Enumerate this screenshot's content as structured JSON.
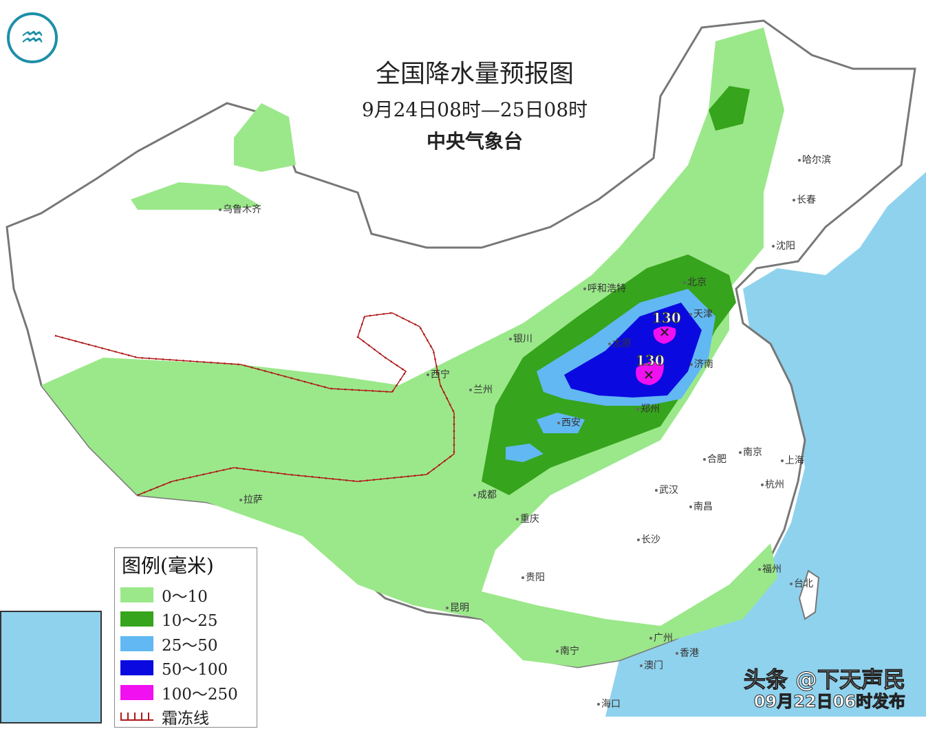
{
  "header": {
    "title": "全国降水量预报图",
    "period": "9月24日08时—25日08时",
    "issuer": "中央气象台"
  },
  "legend": {
    "title": "图例(毫米)",
    "items": [
      {
        "label": "0～10",
        "color": "#9be88a"
      },
      {
        "label": "10～25",
        "color": "#36a41c"
      },
      {
        "label": "25～50",
        "color": "#62b8f2"
      },
      {
        "label": "50～100",
        "color": "#0a0ae0"
      },
      {
        "label": "100～250",
        "color": "#f010f0"
      },
      {
        "label": "霜冻线",
        "color": "#b01818"
      }
    ]
  },
  "cities": [
    "乌鲁木齐",
    "哈尔滨",
    "长春",
    "沈阳",
    "北京",
    "天津",
    "呼和浩特",
    "银川",
    "西宁",
    "兰州",
    "太原",
    "济南",
    "郑州",
    "西安",
    "合肥",
    "南京",
    "上海",
    "杭州",
    "武汉",
    "成都",
    "拉萨",
    "重庆",
    "长沙",
    "南昌",
    "贵阳",
    "福州",
    "台北",
    "昆明",
    "南宁",
    "广州",
    "香港",
    "澳门",
    "海口"
  ],
  "max_values": [
    "130",
    "130"
  ],
  "watermark": {
    "line1": "头条 @下天声民",
    "line2": "09月22日06时发布"
  },
  "colors": {
    "sea": "#8fd2ee",
    "land": "#ffffff",
    "border": "#777777"
  }
}
